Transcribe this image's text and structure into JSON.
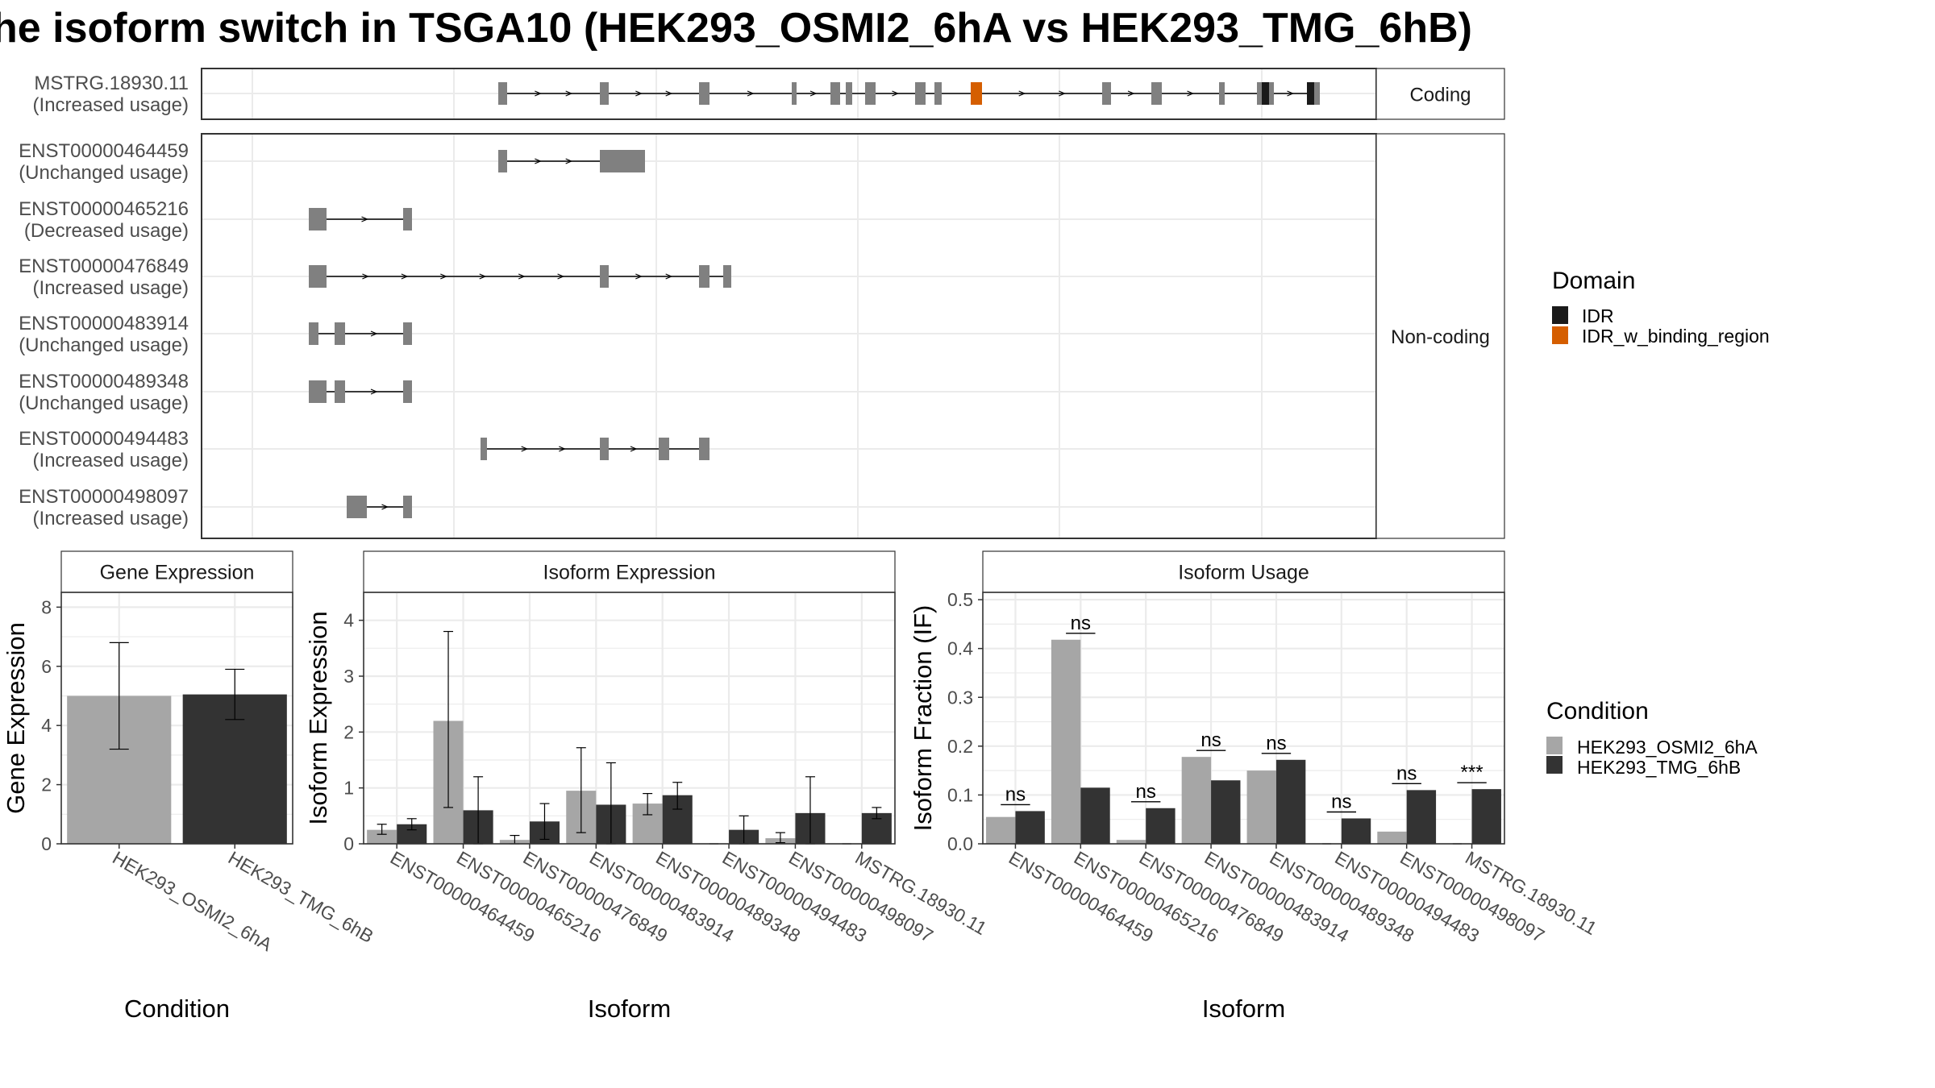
{
  "title": "he isoform switch in TSGA10 (HEK293_OSMI2_6hA vs HEK293_TMG_6hB)",
  "colors": {
    "exon": "#808080",
    "idr": "#1a1a1a",
    "idr_binding": "#d55e00",
    "cond1": "#a6a6a6",
    "cond2": "#333333",
    "grid": "#ebebeb",
    "strip_bg": "#ffffff"
  },
  "isoform_panel": {
    "facets": [
      {
        "label": "Coding",
        "rows": [
          {
            "id": "MSTRG.18930.11",
            "status": "(Increased usage)",
            "exons": [
              [
                618,
                629
              ],
              [
                744,
                755
              ],
              [
                867,
                880
              ],
              [
                982,
                988
              ],
              [
                1030,
                1042
              ],
              [
                1049,
                1057
              ],
              [
                1073,
                1086
              ],
              [
                1135,
                1148
              ],
              [
                1159,
                1168
              ],
              [
                1204,
                1218
              ],
              [
                1367,
                1378
              ],
              [
                1428,
                1441
              ],
              [
                1512,
                1519
              ],
              [
                1559,
                1574
              ],
              [
                1574,
                1580
              ],
              [
                1621,
                1637
              ]
            ],
            "domains": [
              {
                "type": "IDR_w_binding_region",
                "start": 1204,
                "end": 1218
              },
              {
                "type": "IDR",
                "start": 1565,
                "end": 1574
              },
              {
                "type": "IDR",
                "start": 1621,
                "end": 1630
              }
            ]
          }
        ]
      },
      {
        "label": "Non-coding",
        "rows": [
          {
            "id": "ENST00000464459",
            "status": "(Unchanged usage)",
            "exons": [
              [
                618,
                629
              ],
              [
                744,
                800
              ]
            ],
            "domains": []
          },
          {
            "id": "ENST00000465216",
            "status": "(Decreased usage)",
            "exons": [
              [
                383,
                405
              ],
              [
                500,
                511
              ]
            ],
            "domains": []
          },
          {
            "id": "ENST00000476849",
            "status": "(Increased usage)",
            "exons": [
              [
                383,
                405
              ],
              [
                744,
                755
              ],
              [
                867,
                880
              ],
              [
                897,
                907
              ]
            ],
            "domains": []
          },
          {
            "id": "ENST00000483914",
            "status": "(Unchanged usage)",
            "exons": [
              [
                383,
                395
              ],
              [
                415,
                428
              ],
              [
                500,
                511
              ]
            ],
            "domains": []
          },
          {
            "id": "ENST00000489348",
            "status": "(Unchanged usage)",
            "exons": [
              [
                383,
                405
              ],
              [
                415,
                428
              ],
              [
                500,
                511
              ]
            ],
            "domains": []
          },
          {
            "id": "ENST00000494483",
            "status": "(Increased usage)",
            "exons": [
              [
                596,
                604
              ],
              [
                744,
                755
              ],
              [
                817,
                830
              ],
              [
                867,
                880
              ]
            ],
            "domains": []
          },
          {
            "id": "ENST00000498097",
            "status": "(Increased usage)",
            "exons": [
              [
                430,
                455
              ],
              [
                500,
                511
              ]
            ],
            "domains": []
          }
        ]
      }
    ]
  },
  "legend_domain": {
    "title": "Domain",
    "items": [
      {
        "label": "IDR",
        "color": "#1a1a1a"
      },
      {
        "label": "IDR_w_binding_region",
        "color": "#d55e00"
      }
    ]
  },
  "legend_condition": {
    "title": "Condition",
    "items": [
      {
        "label": "HEK293_OSMI2_6hA",
        "color": "#a6a6a6"
      },
      {
        "label": "HEK293_TMG_6hB",
        "color": "#333333"
      }
    ]
  },
  "chart_data": [
    {
      "type": "bar",
      "title": "Gene Expression",
      "xlabel": "Condition",
      "ylabel": "Gene Expression",
      "ylim": [
        0,
        8.5
      ],
      "yticks": [
        0,
        2,
        4,
        6,
        8
      ],
      "categories": [
        "HEK293_OSMI2_6hA",
        "HEK293_TMG_6hB"
      ],
      "values": [
        5.0,
        5.05
      ],
      "errors": [
        [
          3.2,
          6.8
        ],
        [
          4.2,
          5.9
        ]
      ]
    },
    {
      "type": "bar",
      "title": "Isoform Expression",
      "xlabel": "Isoform",
      "ylabel": "Isoform Expression",
      "ylim": [
        0,
        4.5
      ],
      "yticks": [
        0,
        1,
        2,
        3,
        4
      ],
      "categories": [
        "ENST00000464459",
        "ENST00000465216",
        "ENST00000476849",
        "ENST00000483914",
        "ENST00000489348",
        "ENST00000494483",
        "ENST00000498097",
        "MSTRG.18930.11"
      ],
      "series": [
        {
          "name": "HEK293_OSMI2_6hA",
          "values": [
            0.25,
            2.2,
            0.07,
            0.95,
            0.72,
            0.0,
            0.1,
            0.0
          ],
          "errors": [
            [
              0.17,
              0.35
            ],
            [
              0.65,
              3.8
            ],
            [
              0.0,
              0.15
            ],
            [
              0.2,
              1.72
            ],
            [
              0.52,
              0.9
            ],
            [
              0.0,
              0.0
            ],
            [
              0.02,
              0.2
            ],
            [
              0.0,
              0.0
            ]
          ]
        },
        {
          "name": "HEK293_TMG_6hB",
          "values": [
            0.35,
            0.6,
            0.4,
            0.7,
            0.87,
            0.25,
            0.55,
            0.55
          ],
          "errors": [
            [
              0.25,
              0.45
            ],
            [
              0.0,
              1.2
            ],
            [
              0.08,
              0.72
            ],
            [
              0.0,
              1.45
            ],
            [
              0.62,
              1.1
            ],
            [
              0.0,
              0.5
            ],
            [
              0.0,
              1.2
            ],
            [
              0.45,
              0.65
            ]
          ]
        }
      ]
    },
    {
      "type": "bar",
      "title": "Isoform Usage",
      "xlabel": "Isoform",
      "ylabel": "Isoform Fraction (IF)",
      "ylim": [
        0,
        0.515
      ],
      "yticks": [
        0.0,
        0.1,
        0.2,
        0.3,
        0.4,
        0.5
      ],
      "categories": [
        "ENST00000464459",
        "ENST00000465216",
        "ENST00000476849",
        "ENST00000483914",
        "ENST00000489348",
        "ENST00000494483",
        "ENST00000498097",
        "MSTRG.18930.11"
      ],
      "series": [
        {
          "name": "HEK293_OSMI2_6hA",
          "values": [
            0.055,
            0.418,
            0.008,
            0.178,
            0.15,
            0.0,
            0.025,
            0.0
          ]
        },
        {
          "name": "HEK293_TMG_6hB",
          "values": [
            0.067,
            0.115,
            0.073,
            0.13,
            0.172,
            0.052,
            0.11,
            0.112
          ]
        }
      ],
      "annotations": [
        "ns",
        "ns",
        "ns",
        "ns",
        "ns",
        "ns",
        "ns",
        "***"
      ]
    }
  ]
}
